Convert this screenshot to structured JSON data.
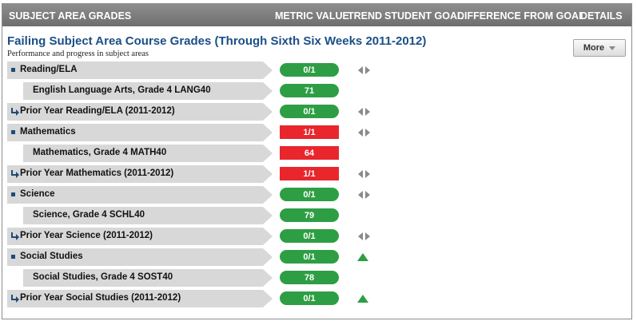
{
  "header": {
    "col_grades": "SUBJECT AREA GRADES",
    "col_metric": "METRIC VALUE",
    "col_trend": "TREND",
    "col_goal": "STUDENT GOAL",
    "col_diff": "DIFFERENCE FROM GOAL",
    "col_details": "DETAILS"
  },
  "panel": {
    "title": "Failing Subject Area Course Grades  (Through Sixth Six Weeks 2011-2012)",
    "subtitle": "Performance and progress in subject areas",
    "more_label": "More"
  },
  "colors": {
    "green": "#2e9e44",
    "red": "#e8262c",
    "title_blue": "#1b4f86"
  },
  "rows": [
    {
      "label": "Reading/ELA",
      "value": "0/1",
      "status": "green",
      "kind": "parent",
      "icon": "bullet-icon",
      "trend": "left-right-arrows-icon"
    },
    {
      "label": "English Language Arts, Grade 4 LANG40",
      "value": "71",
      "status": "green",
      "kind": "child",
      "icon": "",
      "trend": ""
    },
    {
      "label": "Prior Year Reading/ELA  (2011-2012)",
      "value": "0/1",
      "status": "green",
      "kind": "parent",
      "icon": "prior-year-arrow-icon",
      "trend": "left-right-arrows-icon"
    },
    {
      "label": "Mathematics",
      "value": "1/1",
      "status": "red",
      "kind": "parent",
      "icon": "bullet-icon",
      "trend": "left-right-arrows-icon"
    },
    {
      "label": "Mathematics, Grade 4 MATH40",
      "value": "64",
      "status": "red",
      "kind": "child",
      "icon": "",
      "trend": ""
    },
    {
      "label": "Prior Year Mathematics  (2011-2012)",
      "value": "1/1",
      "status": "red",
      "kind": "parent",
      "icon": "prior-year-arrow-icon",
      "trend": "left-right-arrows-icon"
    },
    {
      "label": "Science",
      "value": "0/1",
      "status": "green",
      "kind": "parent",
      "icon": "bullet-icon",
      "trend": "left-right-arrows-icon"
    },
    {
      "label": "Science, Grade 4 SCHL40",
      "value": "79",
      "status": "green",
      "kind": "child",
      "icon": "",
      "trend": ""
    },
    {
      "label": "Prior Year Science  (2011-2012)",
      "value": "0/1",
      "status": "green",
      "kind": "parent",
      "icon": "prior-year-arrow-icon",
      "trend": "left-right-arrows-icon"
    },
    {
      "label": "Social Studies",
      "value": "0/1",
      "status": "green",
      "kind": "parent",
      "icon": "bullet-icon",
      "trend": "up-triangle-icon"
    },
    {
      "label": "Social Studies, Grade 4 SOST40",
      "value": "78",
      "status": "green",
      "kind": "child",
      "icon": "",
      "trend": ""
    },
    {
      "label": "Prior Year Social Studies  (2011-2012)",
      "value": "0/1",
      "status": "green",
      "kind": "parent",
      "icon": "prior-year-arrow-icon",
      "trend": "up-triangle-icon"
    }
  ]
}
